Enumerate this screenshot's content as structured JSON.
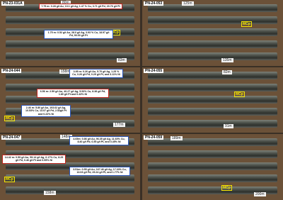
{
  "panels": [
    {
      "hole": "PN-23-031A",
      "depth_top": "80m",
      "depth_bottom": "83m",
      "mcp": "MCp",
      "intercepts": [
        "7.75 m: 0.28 g/t Au, 13.1 g/t Ag, 1.47 % Cu, 3.71 g/t Pd, 20.76 g/t Pt",
        "1.75 m: 0.52 g/t Au, 28.0 g/t Ag, 3.93 % Cu, 18.97 g/t Pd, 90.00 g/t Pt"
      ]
    },
    {
      "hole": "PN-24-053",
      "depth_top": "125m",
      "depth_bottom": "135m",
      "mcp": "MCp",
      "intercepts": []
    },
    {
      "hole": "PN-24-044",
      "depth_top": "158m",
      "depth_bottom": "177m",
      "mcp": "MCp",
      "intercepts": [
        "3.95 m: 0.26 g/t Au, 5.70 g/t Ag, 1.25 % Cu, 3.26 g/t Pd, 0.29 g/t Pt, and 3.11% Ni",
        "6.56 m: 2.59 g/t Au, 40.27 g/t Ag, 5.53% Cu, 8.38 g/t Pd, 1.80 g/t Pt and 0.43% Ni",
        "2.46 m: 5.80 g/t Au, 103.62 g/t Ag, 10.53% Cu, 13.07 g/t Pd, 2.52g/t Pt and 0.22% Ni"
      ]
    },
    {
      "hole": "PN-24-055",
      "depth_top": "82m",
      "depth_bottom": "91m",
      "mcp": "MCp",
      "intercepts": []
    },
    {
      "hole": "PN-24-047",
      "depth_top": "148m",
      "depth_bottom": "158m",
      "mcp": "MCp",
      "intercepts": [
        "4.65m: 0.86 g/t Au, 96.35 g/t Ag, 11.60% Cu, 8.40 g/t Pd, 6.55 g/t Pt, and 0.45% Ni",
        "14.42 m: 0.59 g/t Au, 59.14 g/t Ag, 6.17% Cu, 8.25 g/t Pd, 0.46 g/t Pt and 0.95% Ni",
        "3.51m: 0.55 g/t Au, 167.46 g/t Ag, 17.33% Cu, 13.03 g/t Pd, 29.24 g/t Pt, and 1.77% Ni"
      ]
    },
    {
      "hole": "PN-24-059",
      "depth_top": "189m",
      "depth_bottom": "200m",
      "mcp": "MCp",
      "intercepts": []
    }
  ]
}
